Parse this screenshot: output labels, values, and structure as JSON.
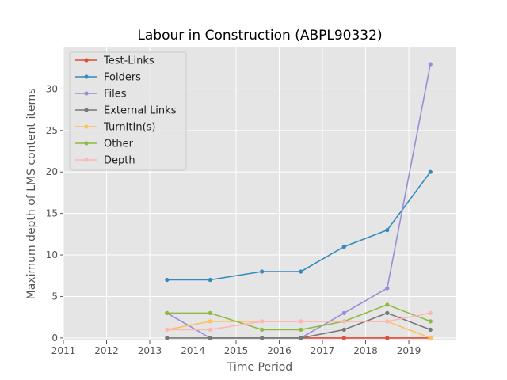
{
  "chart_data": {
    "type": "line",
    "title": "Labour in Construction (ABPL90332)",
    "xlabel": "Time Period",
    "ylabel": "Maximum depth of LMS content items",
    "xlim": [
      2011,
      2020.1
    ],
    "ylim": [
      -0.3,
      35.0
    ],
    "x_ticks": [
      "2011",
      "2012",
      "2013",
      "2014",
      "2015",
      "2016",
      "2017",
      "2018",
      "2019"
    ],
    "y_ticks": [
      "0",
      "5",
      "10",
      "15",
      "20",
      "25",
      "30"
    ],
    "grid": true,
    "legend_position": "upper-left",
    "x": [
      2013.4,
      2014.4,
      2015.6,
      2016.5,
      2017.5,
      2018.5,
      2019.5
    ],
    "series": [
      {
        "name": "Test-Links",
        "color": "#E24A33",
        "values": [
          null,
          null,
          null,
          0,
          0,
          0,
          0
        ]
      },
      {
        "name": "Folders",
        "color": "#348ABD",
        "values": [
          7,
          7,
          8,
          8,
          11,
          13,
          20
        ]
      },
      {
        "name": "Files",
        "color": "#988ED5",
        "values": [
          3,
          0,
          0,
          0,
          3,
          6,
          33
        ]
      },
      {
        "name": "External Links",
        "color": "#777777",
        "values": [
          0,
          0,
          0,
          0,
          1,
          3,
          1
        ]
      },
      {
        "name": "TurnItIn(s)",
        "color": "#FBC15E",
        "values": [
          1,
          2,
          2,
          2,
          2,
          2,
          0
        ]
      },
      {
        "name": "Other",
        "color": "#8EBA42",
        "values": [
          3,
          3,
          1,
          1,
          2,
          4,
          2
        ]
      },
      {
        "name": "Depth",
        "color": "#FFB5B8",
        "values": [
          1,
          1,
          2,
          2,
          2,
          2,
          3
        ]
      }
    ]
  }
}
